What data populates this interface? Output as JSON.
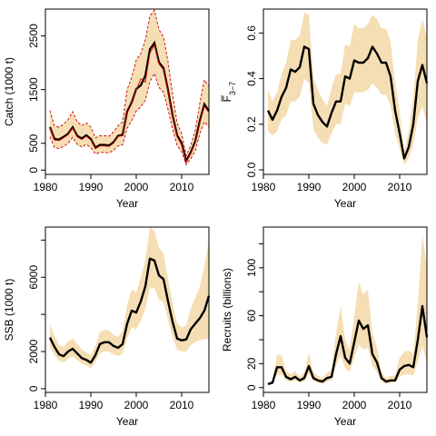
{
  "colors": {
    "band": "#f5deb3",
    "catch_line": "#000000",
    "observed_catch": "#cc0000",
    "axis": "#000000"
  },
  "chart_data": [
    {
      "id": "catch",
      "type": "line",
      "xlabel": "Year",
      "ylabel": "Catch (1000 t)",
      "xlim": [
        1980,
        2016
      ],
      "ylim": [
        -80,
        3000
      ],
      "xticks": [
        1980,
        1990,
        2000,
        2010
      ],
      "yticks": [
        0,
        500,
        1500,
        2500
      ],
      "x": [
        1981,
        1982,
        1983,
        1984,
        1985,
        1986,
        1987,
        1988,
        1989,
        1990,
        1991,
        1992,
        1993,
        1994,
        1995,
        1996,
        1997,
        1998,
        1999,
        2000,
        2001,
        2002,
        2003,
        2004,
        2005,
        2006,
        2007,
        2008,
        2009,
        2010,
        2011,
        2012,
        2013,
        2014,
        2015,
        2016
      ],
      "series": [
        {
          "role": "estimate",
          "values": [
            800,
            580,
            570,
            620,
            680,
            800,
            640,
            590,
            650,
            580,
            420,
            470,
            470,
            460,
            520,
            640,
            660,
            1090,
            1260,
            1510,
            1580,
            1760,
            2250,
            2370,
            2010,
            1900,
            1490,
            1020,
            650,
            500,
            170,
            330,
            540,
            920,
            1230,
            1100
          ]
        },
        {
          "role": "observed",
          "values": [
            780,
            560,
            550,
            600,
            660,
            790,
            620,
            570,
            630,
            560,
            400,
            450,
            450,
            440,
            500,
            630,
            640,
            1070,
            1240,
            1490,
            1700,
            1640,
            2180,
            2330,
            1980,
            1870,
            1470,
            990,
            620,
            470,
            160,
            310,
            510,
            890,
            1190,
            1070
          ]
        },
        {
          "role": "lower",
          "values": [
            620,
            420,
            400,
            440,
            500,
            610,
            480,
            430,
            480,
            420,
            300,
            330,
            330,
            320,
            370,
            450,
            470,
            780,
            920,
            1100,
            1180,
            1300,
            1650,
            1800,
            1540,
            1450,
            1130,
            760,
            460,
            340,
            100,
            210,
            360,
            680,
            900,
            800
          ]
        },
        {
          "role": "upper",
          "values": [
            1110,
            820,
            800,
            860,
            940,
            1090,
            900,
            830,
            880,
            800,
            600,
            640,
            640,
            630,
            710,
            830,
            900,
            1500,
            1730,
            2050,
            2170,
            2420,
            2870,
            2980,
            2620,
            2480,
            2020,
            1420,
            880,
            680,
            270,
            460,
            740,
            1250,
            1680,
            1560
          ]
        }
      ]
    },
    {
      "id": "fbar",
      "type": "line",
      "xlabel": "Year",
      "ylabel": "F̅",
      "ylabel_sub": "3−7",
      "xlim": [
        1980,
        2016
      ],
      "ylim": [
        -0.02,
        0.705
      ],
      "xticks": [
        1980,
        1990,
        2000,
        2010
      ],
      "yticks": [
        0.0,
        0.2,
        0.4,
        0.6
      ],
      "yticklabels": [
        "0.0",
        "0.2",
        "0.4",
        "0.6"
      ],
      "x": [
        1981,
        1982,
        1983,
        1984,
        1985,
        1986,
        1987,
        1988,
        1989,
        1990,
        1991,
        1992,
        1993,
        1994,
        1995,
        1996,
        1997,
        1998,
        1999,
        2000,
        2001,
        2002,
        2003,
        2004,
        2005,
        2006,
        2007,
        2008,
        2009,
        2010,
        2011,
        2012,
        2013,
        2014,
        2015,
        2016
      ],
      "series": [
        {
          "role": "estimate",
          "values": [
            0.26,
            0.22,
            0.26,
            0.32,
            0.36,
            0.44,
            0.43,
            0.45,
            0.54,
            0.53,
            0.29,
            0.24,
            0.21,
            0.19,
            0.25,
            0.3,
            0.3,
            0.41,
            0.4,
            0.48,
            0.47,
            0.47,
            0.49,
            0.54,
            0.51,
            0.47,
            0.47,
            0.41,
            0.26,
            0.16,
            0.05,
            0.1,
            0.2,
            0.39,
            0.46,
            0.38
          ]
        },
        {
          "role": "lower",
          "values": [
            0.17,
            0.15,
            0.17,
            0.22,
            0.24,
            0.3,
            0.3,
            0.32,
            0.4,
            0.38,
            0.18,
            0.14,
            0.12,
            0.11,
            0.16,
            0.2,
            0.2,
            0.29,
            0.28,
            0.34,
            0.34,
            0.34,
            0.35,
            0.38,
            0.36,
            0.33,
            0.33,
            0.28,
            0.16,
            0.09,
            0.02,
            0.05,
            0.11,
            0.23,
            0.28,
            0.2
          ]
        },
        {
          "role": "upper",
          "values": [
            0.35,
            0.3,
            0.34,
            0.42,
            0.47,
            0.57,
            0.57,
            0.59,
            0.69,
            0.68,
            0.41,
            0.35,
            0.31,
            0.28,
            0.36,
            0.42,
            0.42,
            0.55,
            0.54,
            0.64,
            0.62,
            0.62,
            0.64,
            0.68,
            0.66,
            0.62,
            0.62,
            0.56,
            0.38,
            0.26,
            0.08,
            0.17,
            0.32,
            0.57,
            0.66,
            0.58
          ]
        }
      ]
    },
    {
      "id": "ssb",
      "type": "line",
      "xlabel": "Year",
      "ylabel": "SSB (1000 t)",
      "xlim": [
        1980,
        2016
      ],
      "ylim": [
        -200,
        8700
      ],
      "xticks": [
        1980,
        1990,
        2000,
        2010
      ],
      "yticks": [
        0,
        2000,
        4000,
        6000,
        8000
      ],
      "yticklabels": [
        "0",
        "2000",
        "",
        "6000",
        ""
      ],
      "x": [
        1981,
        1982,
        1983,
        1984,
        1985,
        1986,
        1987,
        1988,
        1989,
        1990,
        1991,
        1992,
        1993,
        1994,
        1995,
        1996,
        1997,
        1998,
        1999,
        2000,
        2001,
        2002,
        2003,
        2004,
        2005,
        2006,
        2007,
        2008,
        2009,
        2010,
        2011,
        2012,
        2013,
        2014,
        2015,
        2016
      ],
      "series": [
        {
          "role": "estimate",
          "values": [
            2750,
            2250,
            1850,
            1750,
            2000,
            2150,
            1900,
            1650,
            1550,
            1400,
            1800,
            2400,
            2500,
            2500,
            2300,
            2200,
            2400,
            3500,
            4200,
            4100,
            4700,
            5500,
            7000,
            6900,
            6100,
            5900,
            4700,
            3600,
            2700,
            2600,
            2650,
            3200,
            3500,
            3800,
            4200,
            5000
          ]
        },
        {
          "role": "lower",
          "values": [
            2200,
            1800,
            1500,
            1400,
            1600,
            1750,
            1550,
            1350,
            1250,
            1100,
            1450,
            1900,
            2000,
            2000,
            1850,
            1750,
            1900,
            2700,
            3300,
            3200,
            3650,
            4300,
            5400,
            5400,
            4800,
            4650,
            3700,
            2800,
            2100,
            2000,
            2000,
            2350,
            2500,
            2600,
            2650,
            2700
          ]
        },
        {
          "role": "upper",
          "values": [
            3450,
            2850,
            2350,
            2250,
            2550,
            2700,
            2400,
            2100,
            1950,
            1800,
            2300,
            3050,
            3150,
            3150,
            2900,
            2800,
            3100,
            4500,
            5350,
            5200,
            6000,
            6900,
            8700,
            8500,
            7600,
            7300,
            5900,
            4600,
            3500,
            3300,
            3400,
            4300,
            4900,
            5500,
            6600,
            8000
          ]
        }
      ]
    },
    {
      "id": "recruits",
      "type": "line",
      "xlabel": "Year",
      "ylabel": "Recruits (billions)",
      "xlim": [
        1980,
        2016
      ],
      "ylim": [
        -4,
        134
      ],
      "xticks": [
        1980,
        1990,
        2000,
        2010
      ],
      "yticks": [
        0,
        20,
        40,
        60,
        80,
        100,
        120
      ],
      "yticklabels": [
        "0",
        "20",
        "",
        "60",
        "",
        "100",
        ""
      ],
      "x": [
        1981,
        1982,
        1983,
        1984,
        1985,
        1986,
        1987,
        1988,
        1989,
        1990,
        1991,
        1992,
        1993,
        1994,
        1995,
        1996,
        1997,
        1998,
        1999,
        2000,
        2001,
        2002,
        2003,
        2004,
        2005,
        2006,
        2007,
        2008,
        2009,
        2010,
        2011,
        2012,
        2013,
        2014,
        2015,
        2016
      ],
      "series": [
        {
          "role": "estimate",
          "values": [
            3,
            4,
            17,
            17,
            9,
            7,
            9,
            6,
            8,
            18,
            8,
            6,
            5,
            8,
            9,
            28,
            43,
            25,
            20,
            38,
            56,
            49,
            52,
            28,
            21,
            8,
            5,
            6,
            6,
            15,
            18,
            19,
            17,
            40,
            68,
            42
          ]
        },
        {
          "role": "lower",
          "values": [
            2,
            3,
            11,
            11,
            6,
            5,
            6,
            4,
            5,
            12,
            5,
            4,
            3,
            5,
            6,
            18,
            27,
            16,
            13,
            25,
            36,
            32,
            33,
            18,
            13,
            5,
            3,
            4,
            4,
            9,
            11,
            11,
            10,
            22,
            35,
            20
          ]
        },
        {
          "role": "upper",
          "values": [
            4,
            6,
            27,
            27,
            14,
            11,
            14,
            9,
            13,
            29,
            13,
            10,
            8,
            13,
            14,
            46,
            68,
            40,
            32,
            60,
            88,
            78,
            82,
            45,
            34,
            13,
            8,
            10,
            10,
            25,
            30,
            31,
            28,
            70,
            128,
            100
          ]
        }
      ]
    }
  ]
}
